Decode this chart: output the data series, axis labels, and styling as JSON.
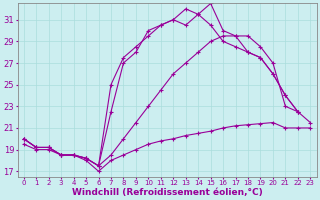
{
  "title": "",
  "xlabel": "Windchill (Refroidissement éolien,°C)",
  "ylabel": "",
  "bg_color": "#cceef0",
  "line_color": "#990099",
  "grid_color": "#aadddd",
  "xlim": [
    -0.5,
    23.5
  ],
  "ylim": [
    16.5,
    32.5
  ],
  "yticks": [
    17,
    19,
    21,
    23,
    25,
    27,
    29,
    31
  ],
  "xticks": [
    0,
    1,
    2,
    3,
    4,
    5,
    6,
    7,
    8,
    9,
    10,
    11,
    12,
    13,
    14,
    15,
    16,
    17,
    18,
    19,
    20,
    21,
    22,
    23
  ],
  "line1_x": [
    0,
    1,
    2,
    3,
    4,
    5,
    6,
    7,
    8,
    9,
    10,
    11,
    12,
    13,
    14,
    15,
    16,
    17,
    18,
    19,
    20,
    21,
    22,
    23
  ],
  "line1_y": [
    19.5,
    19.0,
    19.0,
    18.5,
    18.5,
    18.0,
    17.0,
    18.0,
    18.5,
    19.0,
    19.5,
    19.8,
    20.0,
    20.3,
    20.5,
    20.7,
    21.0,
    21.2,
    21.3,
    21.4,
    21.5,
    21.0,
    21.0,
    21.0
  ],
  "line2_x": [
    0,
    1,
    2,
    3,
    4,
    5,
    6,
    7,
    8,
    9,
    10,
    11,
    12,
    13,
    14,
    15,
    16,
    17,
    18,
    19,
    20,
    21,
    22,
    23
  ],
  "line2_y": [
    20.0,
    19.2,
    19.2,
    18.5,
    18.5,
    18.2,
    17.5,
    18.5,
    20.0,
    21.5,
    23.0,
    24.5,
    26.0,
    27.0,
    28.0,
    29.0,
    29.5,
    29.5,
    28.0,
    27.5,
    26.0,
    24.0,
    22.5,
    21.5
  ],
  "line3_x": [
    0,
    1,
    2,
    3,
    4,
    5,
    6,
    7,
    8,
    9,
    10,
    11,
    12,
    13,
    14,
    15,
    16,
    17,
    18,
    19,
    20,
    21,
    22,
    23
  ],
  "line3_y": [
    20.0,
    19.2,
    19.2,
    18.5,
    18.5,
    18.2,
    17.5,
    25.0,
    27.5,
    28.5,
    29.5,
    30.5,
    31.0,
    30.5,
    31.5,
    30.5,
    29.0,
    28.5,
    28.0,
    27.5,
    26.0,
    24.0,
    22.5,
    null
  ],
  "line4_x": [
    0,
    1,
    2,
    3,
    4,
    5,
    6,
    7,
    8,
    9,
    10,
    11,
    12,
    13,
    14,
    15,
    16,
    17,
    18,
    19,
    20,
    21,
    22,
    23
  ],
  "line4_y": [
    20.0,
    19.2,
    19.2,
    18.5,
    18.5,
    18.2,
    17.5,
    22.5,
    27.0,
    28.0,
    30.0,
    30.5,
    31.0,
    32.0,
    31.5,
    32.5,
    30.0,
    29.5,
    29.5,
    28.5,
    27.0,
    23.0,
    22.5,
    null
  ],
  "marker": "+",
  "markersize": 3,
  "linewidth": 0.8,
  "xlabel_fontsize": 6.5,
  "xtick_fontsize": 5.0,
  "ytick_fontsize": 6.0,
  "tick_color": "#990099",
  "label_color": "#990099",
  "spine_color": "#888888"
}
